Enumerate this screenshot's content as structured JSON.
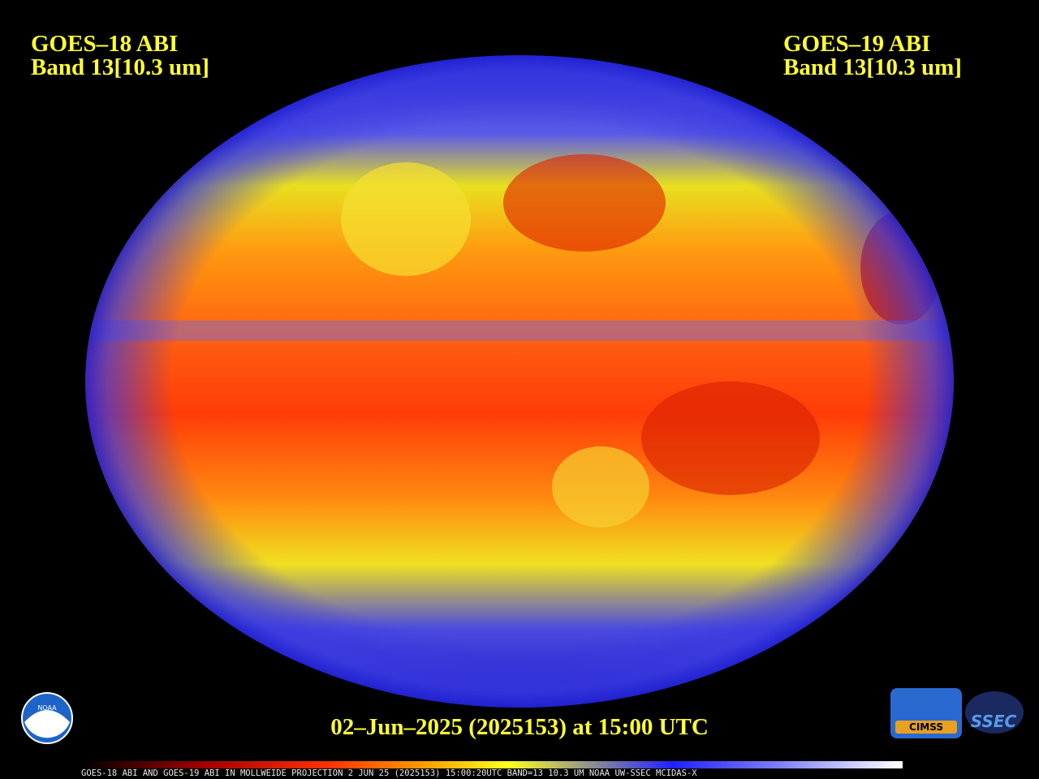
{
  "header_left": {
    "line1": "GOES–18 ABI",
    "line2": "Band 13[10.3 um]"
  },
  "header_right": {
    "line1": "GOES–19 ABI",
    "line2": "Band 13[10.3 um]"
  },
  "timestamp": "02–Jun–2025 (2025153) at 15:00 UTC",
  "caption": "GOES-18 ABI AND GOES-19 ABI IN MOLLWEIDE PROJECTION 2 JUN 25 (2025153) 15:00:20UTC BAND=13 10.3 UM NOAA UW-SSEC MCIDAS-X",
  "logos": {
    "noaa": "NOAA",
    "cimss": "CIMSS",
    "ssec": "SSEC"
  }
}
